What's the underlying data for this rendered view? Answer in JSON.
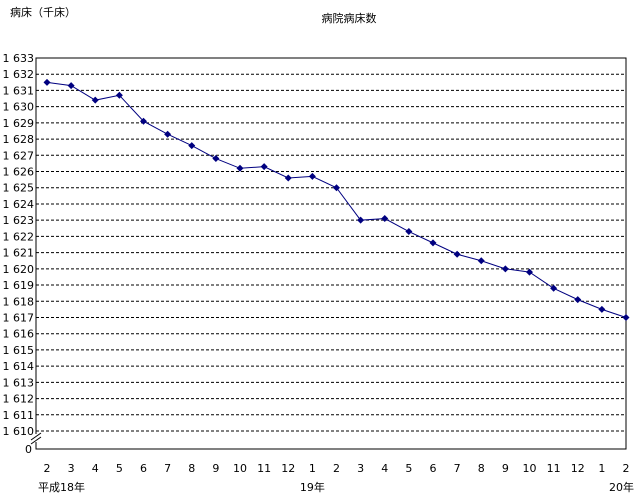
{
  "chart_data": {
    "type": "line",
    "title": "病院病床数",
    "ylabel": "病床（千床）",
    "xlabel": "",
    "ylim": [
      1610,
      1633
    ],
    "y_ticks": [
      "1 610",
      "1 611",
      "1 612",
      "1 613",
      "1 614",
      "1 615",
      "1 616",
      "1 617",
      "1 618",
      "1 619",
      "1 620",
      "1 621",
      "1 622",
      "1 623",
      "1 624",
      "1 625",
      "1 626",
      "1 627",
      "1 628",
      "1 629",
      "1 630",
      "1 631",
      "1 632",
      "1 633"
    ],
    "y_zero_label": "0",
    "y_axis_break": true,
    "grid": true,
    "legend": "none",
    "categories": [
      "2",
      "3",
      "4",
      "5",
      "6",
      "7",
      "8",
      "9",
      "10",
      "11",
      "12",
      "1",
      "2",
      "3",
      "4",
      "5",
      "6",
      "7",
      "8",
      "9",
      "10",
      "11",
      "12",
      "1",
      "2"
    ],
    "year_labels": [
      {
        "index": 0,
        "text": "平成18年"
      },
      {
        "index": 11,
        "text": "19年"
      },
      {
        "index": 24,
        "text": "20年"
      }
    ],
    "series": [
      {
        "values": [
          1631.5,
          1631.3,
          1630.4,
          1630.7,
          1629.1,
          1628.3,
          1627.6,
          1626.8,
          1626.2,
          1626.3,
          1625.6,
          1625.7,
          1625.0,
          1623.0,
          1623.1,
          1622.3,
          1621.6,
          1620.9,
          1620.5,
          1620.0,
          1619.8,
          1618.8,
          1618.1,
          1617.5,
          1617.0
        ],
        "color": "#000080"
      }
    ]
  }
}
